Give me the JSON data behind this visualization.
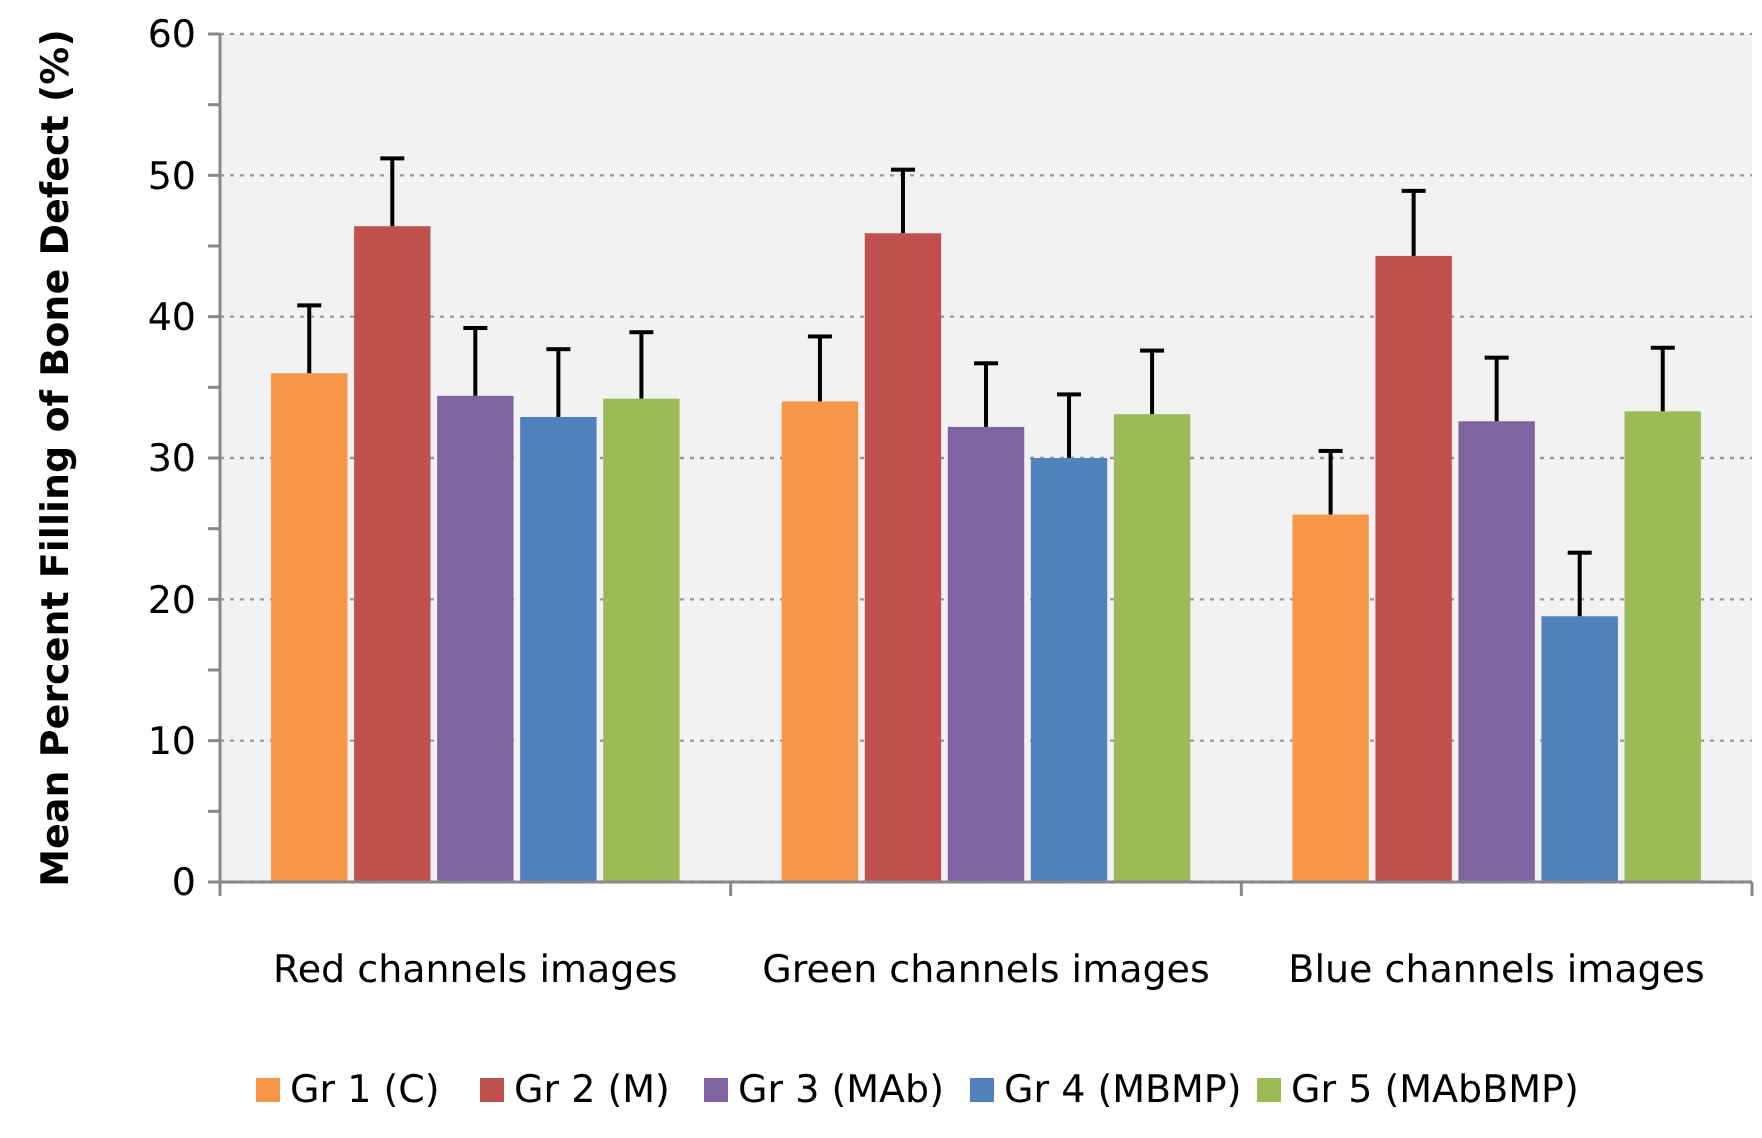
{
  "chart_data": {
    "type": "bar",
    "ylabel": "Mean Percent Filling of Bone Defect (%)",
    "categories": [
      "Red channels images",
      "Green channels images",
      "Blue channels images"
    ],
    "series": [
      {
        "name": "Gr 1 (C)",
        "color": "#f79646",
        "values": [
          36,
          34,
          26
        ],
        "errors": [
          [
            36,
            40.8
          ],
          [
            34,
            38.6
          ],
          [
            26,
            30.5
          ]
        ]
      },
      {
        "name": "Gr 2 (M)",
        "color": "#c0504d",
        "values": [
          46.4,
          45.9,
          44.3
        ],
        "errors": [
          [
            46.4,
            51.2
          ],
          [
            45.9,
            50.4
          ],
          [
            44.3,
            48.9
          ]
        ]
      },
      {
        "name": "Gr 3 (MAb)",
        "color": "#8064a2",
        "values": [
          34.4,
          32.2,
          32.6
        ],
        "errors": [
          [
            34.4,
            39.2
          ],
          [
            32.2,
            36.7
          ],
          [
            32.6,
            37.1
          ]
        ]
      },
      {
        "name": "Gr 4 (MBMP)",
        "color": "#4f81bd",
        "values": [
          32.9,
          30,
          18.8
        ],
        "errors": [
          [
            32.9,
            37.7
          ],
          [
            30,
            34.5
          ],
          [
            18.8,
            23.3
          ]
        ]
      },
      {
        "name": "Gr 5 (MAbBMP)",
        "color": "#9bbb59",
        "values": [
          34.2,
          33.1,
          33.3
        ],
        "errors": [
          [
            34.2,
            38.9
          ],
          [
            33.1,
            37.6
          ],
          [
            33.3,
            37.8
          ]
        ]
      }
    ],
    "ylim": [
      0,
      60
    ],
    "yticks": [
      0,
      {
        "value": 5,
        "label": null
      },
      10,
      {
        "value": 15,
        "label": null
      },
      20,
      {
        "value": 25,
        "label": null
      },
      30,
      {
        "value": 35,
        "label": null
      },
      40,
      {
        "value": 45,
        "label": null
      },
      50,
      {
        "value": 55,
        "label": null
      },
      60
    ],
    "grid": "y",
    "legend": "bottom"
  }
}
